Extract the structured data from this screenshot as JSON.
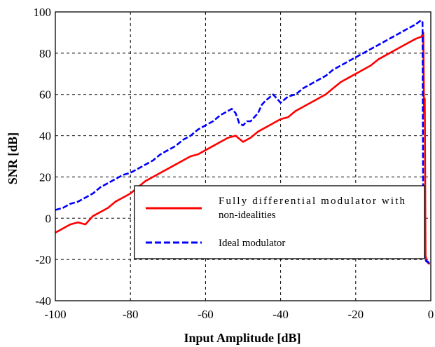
{
  "chart_data": {
    "type": "line",
    "xlabel": "Input Amplitude [dB]",
    "ylabel": "SNR [dB]",
    "xlim": [
      -100,
      0
    ],
    "ylim": [
      -40,
      100
    ],
    "xticks": [
      -100,
      -80,
      -60,
      -40,
      -20,
      0
    ],
    "yticks": [
      -40,
      -20,
      0,
      20,
      40,
      60,
      80,
      100
    ],
    "xtick_labels": [
      "-100",
      "-80",
      "-60",
      "-40",
      "-20",
      "0"
    ],
    "ytick_labels": [
      "-40",
      "-20",
      "0",
      "20",
      "40",
      "60",
      "80",
      "100"
    ],
    "grid": true,
    "grid_style": "dashed",
    "legend_position": "lower-right",
    "series": [
      {
        "name_lines": [
          "Fully differential modulator with",
          "non-idealities"
        ],
        "color": "#ff0000",
        "style": "solid",
        "x": [
          -100,
          -98,
          -96,
          -94,
          -92,
          -90,
          -88,
          -86,
          -84,
          -82,
          -80,
          -78,
          -76,
          -74,
          -72,
          -70,
          -68,
          -66,
          -64,
          -62,
          -60,
          -58,
          -56,
          -54,
          -52,
          -50,
          -48,
          -46,
          -44,
          -42,
          -40,
          -38,
          -36,
          -34,
          -32,
          -30,
          -28,
          -26,
          -24,
          -22,
          -20,
          -18,
          -16,
          -14,
          -12,
          -10,
          -8,
          -6,
          -4,
          -2.5,
          -2.2,
          -2.0,
          -1.8,
          -1.6,
          -1.4,
          -1.2,
          -1.0,
          -0.6,
          -0.2
        ],
        "y": [
          -7,
          -5,
          -3,
          -2,
          -3,
          1,
          3,
          5,
          8,
          10,
          12,
          15,
          18,
          20,
          22,
          24,
          26,
          28,
          30,
          31,
          33,
          35,
          37,
          39,
          40,
          37,
          39,
          42,
          44,
          46,
          48,
          49,
          52,
          54,
          56,
          58,
          60,
          63,
          66,
          68,
          70,
          72,
          74,
          77,
          79,
          81,
          83,
          85,
          87,
          88,
          89,
          90,
          51,
          58,
          -18,
          -20,
          -21,
          -22,
          -22
        ]
      },
      {
        "name": "Ideal modulator",
        "color": "#0000ff",
        "style": "dashed",
        "x": [
          -100,
          -98,
          -96,
          -94,
          -92,
          -90,
          -88,
          -86,
          -84,
          -82,
          -80,
          -78,
          -76,
          -74,
          -72,
          -70,
          -68,
          -66,
          -64,
          -62,
          -60,
          -58,
          -56,
          -54,
          -53,
          -52,
          -51,
          -50,
          -49,
          -48,
          -47,
          -46,
          -45,
          -44,
          -42,
          -40,
          -38,
          -36,
          -34,
          -32,
          -30,
          -28,
          -26,
          -24,
          -22,
          -20,
          -18,
          -16,
          -14,
          -12,
          -10,
          -8,
          -6,
          -4,
          -2.6,
          -2.2,
          -2.0,
          -1.8,
          -1.6,
          -1.4,
          -1.2,
          -0.8,
          -0.4
        ],
        "y": [
          4,
          5,
          7,
          8,
          10,
          12,
          15,
          17,
          19,
          21,
          22,
          24,
          26,
          28,
          31,
          33,
          35,
          38,
          40,
          43,
          45,
          47,
          50,
          52,
          53,
          51,
          46,
          45,
          47,
          47,
          49,
          51,
          55,
          57,
          60,
          56,
          59,
          60,
          63,
          65,
          67,
          69,
          72,
          74,
          76,
          78,
          80,
          82,
          84,
          86,
          88,
          90,
          92,
          94,
          96,
          95,
          -12,
          -18,
          -20,
          -20,
          -21,
          -21,
          -22
        ]
      }
    ]
  }
}
